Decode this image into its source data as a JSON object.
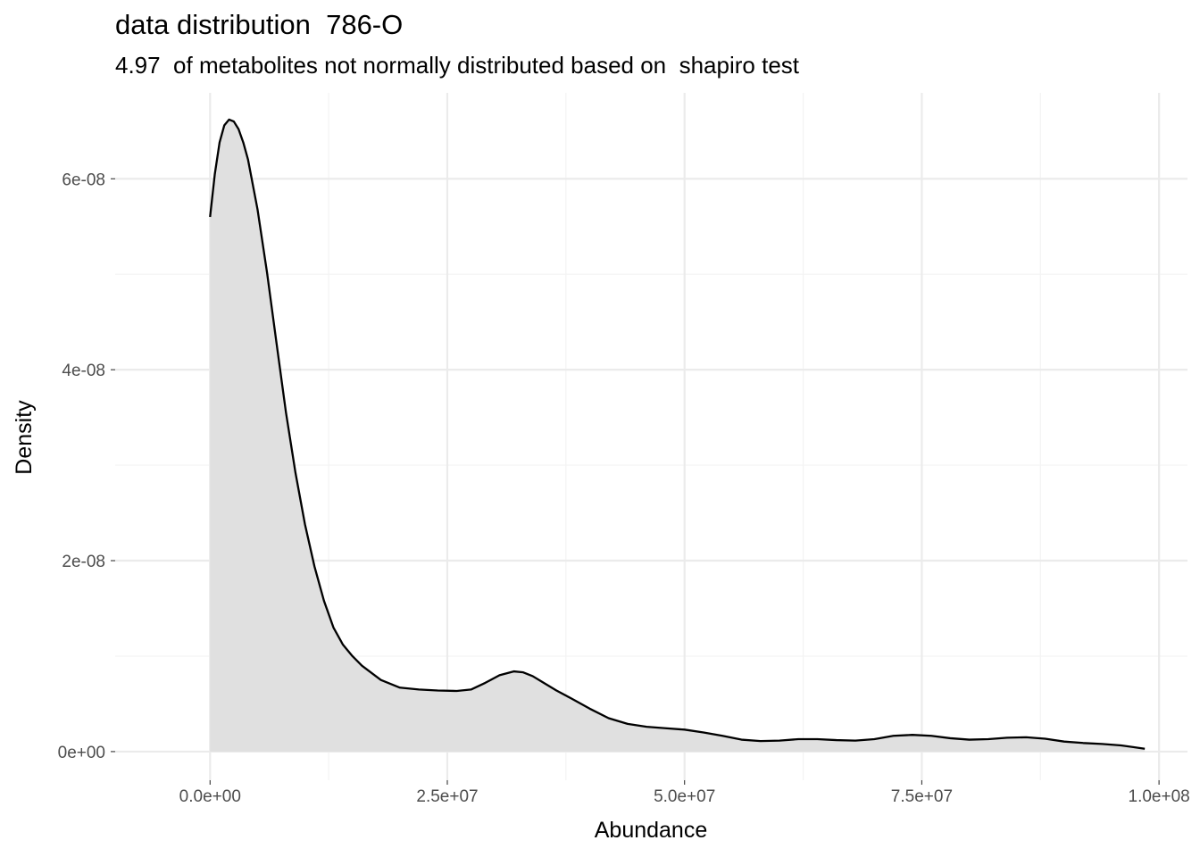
{
  "chart_data": {
    "type": "area",
    "title": "data distribution  786-O",
    "subtitle": "4.97  of metabolites not normally distributed based on  shapiro test",
    "xlabel": "Abundance",
    "ylabel": "Density",
    "xlim": [
      -10000000,
      103000000
    ],
    "ylim": [
      -3e-09,
      6.9e-08
    ],
    "x_ticks": [
      0,
      25000000,
      50000000,
      75000000,
      100000000
    ],
    "x_tick_labels": [
      "0.0e+00",
      "2.5e+07",
      "5.0e+07",
      "7.5e+07",
      "1.0e+08"
    ],
    "x_minor_ticks": [
      12500000,
      37500000,
      62500000,
      87500000
    ],
    "y_ticks": [
      0,
      2e-08,
      4e-08,
      6e-08
    ],
    "y_tick_labels": [
      "0e+00",
      "2e-08",
      "4e-08",
      "6e-08"
    ],
    "y_minor_ticks": [
      1e-08,
      3e-08,
      5e-08
    ],
    "grid": true,
    "fill_color": "#e0e0e0",
    "line_color": "#000000",
    "series": [
      {
        "x": [
          0,
          500000,
          1000000,
          1500000,
          2000000,
          2500000,
          3000000,
          3500000,
          4000000,
          5000000,
          6000000,
          7000000,
          8000000,
          9000000,
          10000000,
          11000000,
          12000000,
          13000000,
          14000000,
          15000000,
          16000000,
          18000000,
          20000000,
          22000000,
          24000000,
          26000000,
          27500000,
          29000000,
          30500000,
          32000000,
          33000000,
          34000000,
          35000000,
          36500000,
          38000000,
          40000000,
          42000000,
          44000000,
          46000000,
          48000000,
          50000000,
          52000000,
          54000000,
          56000000,
          58000000,
          60000000,
          62000000,
          64000000,
          66000000,
          68000000,
          70000000,
          72000000,
          74000000,
          76000000,
          78000000,
          80000000,
          82000000,
          84000000,
          86000000,
          88000000,
          90000000,
          92000000,
          94000000,
          96000000,
          98500000
        ],
        "y": [
          5.6e-08,
          6.05e-08,
          6.38e-08,
          6.56e-08,
          6.62e-08,
          6.6e-08,
          6.52e-08,
          6.38e-08,
          6.2e-08,
          5.68e-08,
          5.02e-08,
          4.28e-08,
          3.55e-08,
          2.92e-08,
          2.38e-08,
          1.94e-08,
          1.58e-08,
          1.3e-08,
          1.12e-08,
          1e-08,
          9e-09,
          7.5e-09,
          6.7e-09,
          6.5e-09,
          6.4e-09,
          6.35e-09,
          6.5e-09,
          7.2e-09,
          8e-09,
          8.4e-09,
          8.3e-09,
          7.9e-09,
          7.3e-09,
          6.4e-09,
          5.6e-09,
          4.5e-09,
          3.5e-09,
          2.9e-09,
          2.6e-09,
          2.45e-09,
          2.3e-09,
          2e-09,
          1.65e-09,
          1.25e-09,
          1.1e-09,
          1.15e-09,
          1.3e-09,
          1.3e-09,
          1.2e-09,
          1.15e-09,
          1.3e-09,
          1.65e-09,
          1.75e-09,
          1.65e-09,
          1.4e-09,
          1.25e-09,
          1.3e-09,
          1.45e-09,
          1.5e-09,
          1.35e-09,
          1.05e-09,
          9e-10,
          8e-10,
          6.5e-10,
          3e-10
        ]
      }
    ]
  }
}
